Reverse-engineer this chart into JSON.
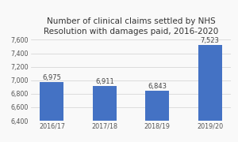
{
  "title": "Number of clinical claims settled by NHS\nResolution with damages paid, 2016-2020",
  "categories": [
    "2016/17",
    "2017/18",
    "2018/19",
    "2019/20"
  ],
  "values": [
    6975,
    6911,
    6843,
    7523
  ],
  "bar_color": "#4472C4",
  "ylim": [
    6400,
    7600
  ],
  "yticks": [
    6400,
    6600,
    6800,
    7000,
    7200,
    7400,
    7600
  ],
  "title_fontsize": 7.5,
  "label_fontsize": 6.0,
  "tick_fontsize": 5.8,
  "background_color": "#f9f9f9",
  "grid_color": "#d0d0d0"
}
